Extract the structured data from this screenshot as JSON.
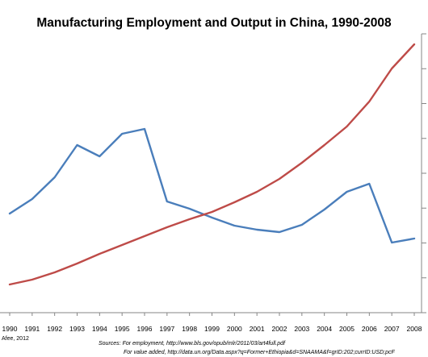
{
  "chart_data": {
    "type": "line",
    "title": "Manufacturing Employment and Output in China, 1990-2008",
    "categories": [
      "1990",
      "1991",
      "1992",
      "1993",
      "1994",
      "1995",
      "1996",
      "1997",
      "1998",
      "1999",
      "2000",
      "2001",
      "2002",
      "2003",
      "2004",
      "2005",
      "2006",
      "2007",
      "2008"
    ],
    "series": [
      {
        "color": "#4a7ebb",
        "values": [
          265,
          247,
          220,
          180,
          194,
          166,
          160,
          250,
          259,
          270,
          280,
          285,
          288,
          279,
          260,
          238,
          228,
          301,
          296
        ]
      },
      {
        "color": "#be4b48",
        "values": [
          353,
          347,
          338,
          327,
          315,
          304,
          293,
          282,
          272,
          263,
          251,
          238,
          222,
          202,
          180,
          157,
          126,
          85,
          55
        ]
      }
    ],
    "grid": false,
    "legend": "none"
  },
  "footer": {
    "credit": "Afee, 2012",
    "source_1": "Sources: For employment, http://www.bls.gov/opub/mlr/2011/03/art4full.pdf",
    "source_2": "For value added, http://data.un.org/Data.aspx?q=Former+Ethiopia&d=SNAAMA&f=grID:202;currID:USD;pcF"
  }
}
